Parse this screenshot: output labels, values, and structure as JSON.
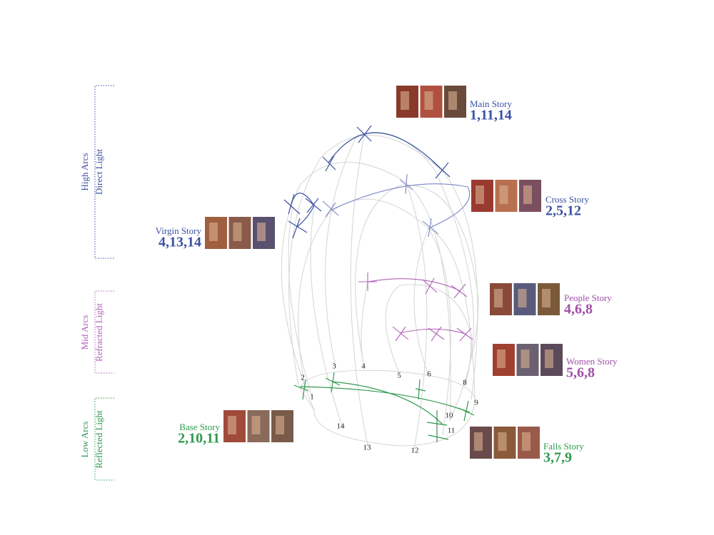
{
  "brackets": [
    {
      "lines": [
        "High Arcs",
        "Direct Light"
      ]
    },
    {
      "lines": [
        "Mid Arcs",
        "Refracted Light"
      ]
    },
    {
      "lines": [
        "Low Arcs",
        "Reflected Light"
      ]
    }
  ],
  "stories": [
    {
      "name": "Main Story",
      "stations": "1,11,14"
    },
    {
      "name": "Cross Story",
      "stations": "2,5,12"
    },
    {
      "name": "Virgin Story",
      "stations": "4,13,14"
    },
    {
      "name": "People Story",
      "stations": "4,6,8"
    },
    {
      "name": "Women Story",
      "stations": "5,6,8"
    },
    {
      "name": "Base Story",
      "stations": "2,10,11"
    },
    {
      "name": "Falls Story",
      "stations": "3,7,9"
    }
  ],
  "stations": [
    "1",
    "2",
    "3",
    "4",
    "5",
    "6",
    "8",
    "9",
    "10",
    "11",
    "12",
    "13",
    "14"
  ]
}
